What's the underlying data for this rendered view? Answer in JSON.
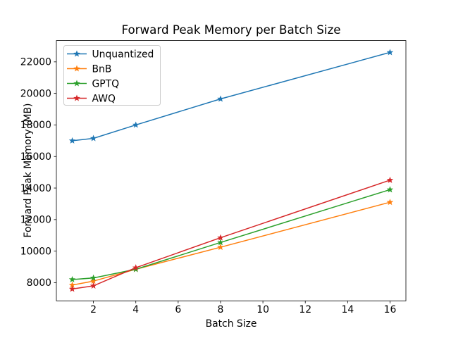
{
  "chart_data": {
    "type": "line",
    "title": "Forward Peak Memory per Batch Size",
    "xlabel": "Batch Size",
    "ylabel": "Forward Peak Memory (MB)",
    "x": [
      1,
      2,
      4,
      8,
      16
    ],
    "series": [
      {
        "name": "Unquantized",
        "color": "#1f77b4",
        "values": [
          17000,
          17150,
          18000,
          19650,
          22600
        ]
      },
      {
        "name": "BnB",
        "color": "#ff7f0e",
        "values": [
          7850,
          8100,
          8850,
          10250,
          13100
        ]
      },
      {
        "name": "GPTQ",
        "color": "#2ca02c",
        "values": [
          8200,
          8300,
          8850,
          10550,
          13900
        ]
      },
      {
        "name": "AWQ",
        "color": "#d62728",
        "values": [
          7600,
          7800,
          8950,
          10850,
          14500
        ]
      }
    ],
    "xticks": [
      2,
      4,
      6,
      8,
      10,
      12,
      14,
      16
    ],
    "yticks": [
      8000,
      10000,
      12000,
      14000,
      16000,
      18000,
      20000,
      22000
    ],
    "xlim": [
      0.25,
      16.75
    ],
    "ylim": [
      6850,
      23350
    ],
    "grid": false,
    "marker": "star",
    "line_width": 1.5,
    "legend_position": "upper left",
    "legend_entries": [
      "Unquantized",
      "BnB",
      "GPTQ",
      "AWQ"
    ],
    "background_color": "#ffffff",
    "spine_color": "#000000",
    "legend_border_color": "#cccccc"
  }
}
